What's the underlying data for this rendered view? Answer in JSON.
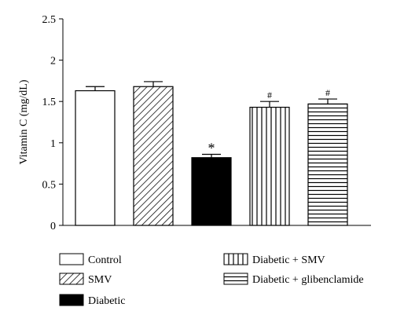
{
  "chart_data": {
    "type": "bar",
    "xlabel": "",
    "ylabel": "Vitamin C (mg/dL)",
    "ylim": [
      0,
      2.5
    ],
    "yticks": [
      0,
      0.5,
      1,
      1.5,
      2,
      2.5
    ],
    "ytick_labels": [
      "0",
      "0.5",
      "1",
      "1.5",
      "2",
      "2.5"
    ],
    "grid": false,
    "legend_position": "bottom",
    "categories": [
      "Control",
      "SMV",
      "Diabetic",
      "Diabetic + SMV",
      "Diabetic + glibenclamide"
    ],
    "values": [
      1.63,
      1.68,
      0.82,
      1.43,
      1.47
    ],
    "errors": [
      0.05,
      0.06,
      0.04,
      0.07,
      0.06
    ],
    "annotations": [
      "",
      "",
      "*",
      "#",
      "#"
    ],
    "fills": [
      "white",
      "diagonal",
      "black",
      "vertical",
      "horizontal"
    ],
    "colors": {
      "bar_stroke": "#000000",
      "solid": "#000000",
      "background": "#ffffff"
    }
  }
}
